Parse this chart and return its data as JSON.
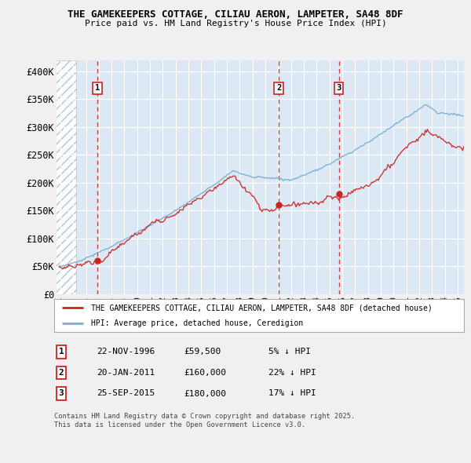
{
  "title": "THE GAMEKEEPERS COTTAGE, CILIAU AERON, LAMPETER, SA48 8DF",
  "subtitle": "Price paid vs. HM Land Registry's House Price Index (HPI)",
  "ylim": [
    0,
    420000
  ],
  "yticks": [
    0,
    50000,
    100000,
    150000,
    200000,
    250000,
    300000,
    350000,
    400000
  ],
  "ytick_labels": [
    "£0",
    "£50K",
    "£100K",
    "£150K",
    "£200K",
    "£250K",
    "£300K",
    "£350K",
    "£400K"
  ],
  "hpi_color": "#7bafd4",
  "price_color": "#cc2222",
  "plot_bg_color": "#dce9f5",
  "grid_color": "#ffffff",
  "sale_dates": [
    1996.9,
    2011.05,
    2015.73
  ],
  "sale_prices": [
    59500,
    160000,
    180000
  ],
  "sale_labels": [
    "1",
    "2",
    "3"
  ],
  "vline_color": "#cc2222",
  "legend_house_label": "THE GAMEKEEPERS COTTAGE, CILIAU AERON, LAMPETER, SA48 8DF (detached house)",
  "legend_hpi_label": "HPI: Average price, detached house, Ceredigion",
  "table_rows": [
    [
      "1",
      "22-NOV-1996",
      "£59,500",
      "5% ↓ HPI"
    ],
    [
      "2",
      "20-JAN-2011",
      "£160,000",
      "22% ↓ HPI"
    ],
    [
      "3",
      "25-SEP-2015",
      "£180,000",
      "17% ↓ HPI"
    ]
  ],
  "footnote": "Contains HM Land Registry data © Crown copyright and database right 2025.\nThis data is licensed under the Open Government Licence v3.0.",
  "xmin": 1994.0,
  "xmax": 2025.5,
  "hatch_end": 1995.25
}
